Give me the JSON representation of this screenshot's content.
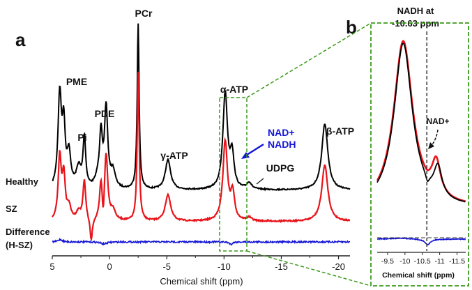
{
  "chart_data": [
    {
      "type": "line",
      "panel_label": "a",
      "xlabel": "Chemical shift (ppm)",
      "x_tick_labels": [
        "5",
        "0",
        "-5",
        "-10",
        "-15",
        "-20"
      ],
      "x_ticks": [
        5,
        0,
        -5,
        -10,
        -15,
        -20
      ],
      "xlim": [
        5,
        -21
      ],
      "series": [
        {
          "name": "Healthy",
          "color": "#000000"
        },
        {
          "name": "SZ",
          "color": "#e8141b"
        },
        {
          "name": "Difference",
          "name_line2": "(H-SZ)",
          "color": "#1515d6"
        }
      ],
      "peaks": [
        {
          "label": "PME",
          "ppm": 4.2,
          "healthy": 0.62,
          "sz": 0.42
        },
        {
          "label": "Pi",
          "ppm": 2.2,
          "healthy": 0.32,
          "sz": 0.24
        },
        {
          "label": "PDE",
          "ppm": 0.3,
          "healthy": 0.5,
          "sz": 0.42
        },
        {
          "label": "PCr",
          "ppm": -2.5,
          "healthy": 1.0,
          "sz": 0.9
        },
        {
          "label": "γ-ATP",
          "ppm": -5.1,
          "healthy": 0.2,
          "sz": 0.17
        },
        {
          "label": "α-ATP",
          "ppm": -10.1,
          "healthy": 0.6,
          "sz": 0.5
        },
        {
          "label": "UDPG",
          "ppm": -12.2,
          "healthy": 0.05,
          "sz": 0.03
        },
        {
          "label": "β-ATP",
          "ppm": -18.8,
          "healthy": 0.4,
          "sz": 0.34
        }
      ],
      "annotation": {
        "label_line1": "NAD+",
        "label_line2": "NADH",
        "color": "#1515d6"
      }
    },
    {
      "type": "line",
      "panel_label": "b",
      "title_line1": "NADH at",
      "title_line2": "-10.63 ppm",
      "xlabel": "Chemical shift (ppm)",
      "x_tick_labels": [
        "-9.5",
        "-10",
        "-10.5",
        "-11",
        "-11.5"
      ],
      "x_ticks": [
        -9.5,
        -10,
        -10.5,
        -11,
        -11.5
      ],
      "xlim": [
        -9.2,
        -11.75
      ],
      "marker_ppm": -10.63,
      "annotation": {
        "label": "NAD+",
        "ppm": -10.85
      }
    }
  ]
}
